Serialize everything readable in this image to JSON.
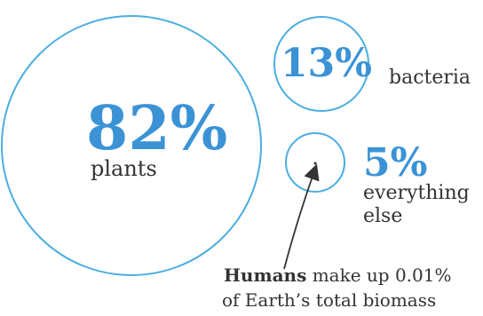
{
  "chart_data": {
    "type": "bubble",
    "series": [
      {
        "value": 82,
        "value_label": "82%",
        "label": "plants"
      },
      {
        "value": 13,
        "value_label": "13%",
        "label": "bacteria"
      },
      {
        "value": 5,
        "value_label": "5%",
        "label": "everything else"
      },
      {
        "value": 0.01,
        "value_label": "0.01%",
        "label": "Humans"
      }
    ],
    "annotation": {
      "bold": "Humans",
      "line1_rest": " make up 0.01%",
      "line2": "of Earth’s total biomass"
    },
    "everything_else_lines": [
      "everything",
      "else"
    ]
  },
  "colors": {
    "circle_stroke": "#4aaee0",
    "percent_text": "#3b93d6",
    "label_text": "#333333",
    "arrow": "#333333"
  }
}
